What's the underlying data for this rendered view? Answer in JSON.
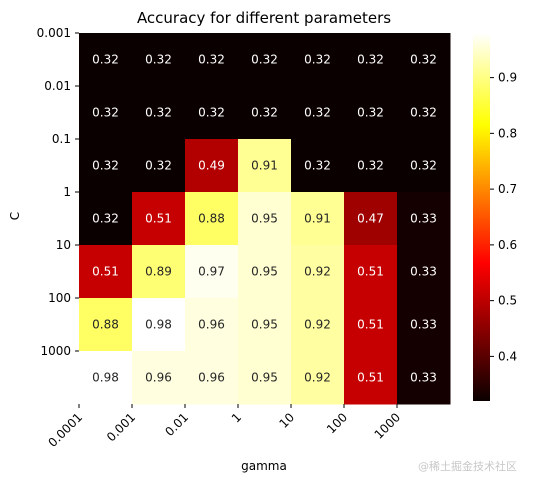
{
  "chart_data": {
    "type": "heatmap",
    "title": "Accuracy for different parameters",
    "xlabel": "gamma",
    "ylabel": "C",
    "x_categories": [
      "0.0001",
      "0.001",
      "0.01",
      "1",
      "10",
      "100",
      "1000"
    ],
    "y_categories": [
      "0.001",
      "0.01",
      "0.1",
      "1",
      "10",
      "100",
      "1000"
    ],
    "values": [
      [
        0.32,
        0.32,
        0.32,
        0.32,
        0.32,
        0.32,
        0.32
      ],
      [
        0.32,
        0.32,
        0.32,
        0.32,
        0.32,
        0.32,
        0.32
      ],
      [
        0.32,
        0.32,
        0.49,
        0.91,
        0.32,
        0.32,
        0.32
      ],
      [
        0.32,
        0.51,
        0.88,
        0.95,
        0.91,
        0.47,
        0.33
      ],
      [
        0.51,
        0.89,
        0.97,
        0.95,
        0.92,
        0.51,
        0.33
      ],
      [
        0.88,
        0.98,
        0.96,
        0.95,
        0.92,
        0.51,
        0.33
      ],
      [
        0.98,
        0.96,
        0.96,
        0.95,
        0.92,
        0.51,
        0.33
      ]
    ],
    "colormap": "hot",
    "value_range": [
      0.32,
      0.98
    ],
    "colorbar_ticks": [
      "0.4",
      "0.5",
      "0.6",
      "0.7",
      "0.8",
      "0.9"
    ],
    "colorbar_tick_values": [
      0.4,
      0.5,
      0.6,
      0.7,
      0.8,
      0.9
    ],
    "annotated": true,
    "grid": false
  },
  "watermark": "@稀土掘金技术社区"
}
